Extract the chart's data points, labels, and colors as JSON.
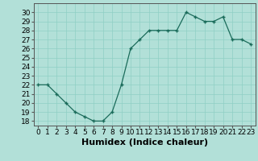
{
  "x": [
    0,
    1,
    2,
    3,
    4,
    5,
    6,
    7,
    8,
    9,
    10,
    11,
    12,
    13,
    14,
    15,
    16,
    17,
    18,
    19,
    20,
    21,
    22,
    23
  ],
  "y": [
    22,
    22,
    21,
    20,
    19,
    18.5,
    18,
    18,
    19,
    22,
    26,
    27,
    28,
    28,
    28,
    28,
    30,
    29.5,
    29,
    29,
    29.5,
    27,
    27,
    26.5
  ],
  "line_color": "#1a6b5a",
  "marker_color": "#1a6b5a",
  "bg_color": "#b2e0d8",
  "grid_color": "#8fcfc4",
  "xlabel": "Humidex (Indice chaleur)",
  "ylabel_ticks": [
    18,
    19,
    20,
    21,
    22,
    23,
    24,
    25,
    26,
    27,
    28,
    29,
    30
  ],
  "ylim": [
    17.5,
    31
  ],
  "xlim": [
    -0.5,
    23.5
  ],
  "tick_fontsize": 6.5,
  "xlabel_fontsize": 8
}
